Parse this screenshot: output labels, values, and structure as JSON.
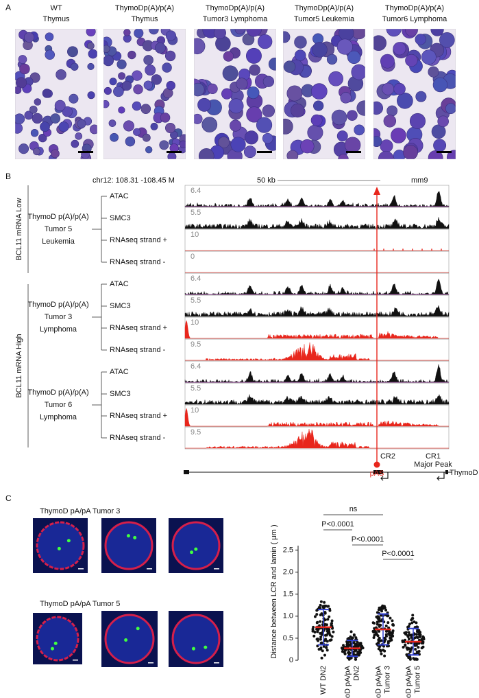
{
  "panel_a": {
    "label": "A",
    "images": [
      {
        "line1": "WT",
        "line2": "Thymus"
      },
      {
        "line1": "ThymoDp(A)/p(A)",
        "line2": "Thymus"
      },
      {
        "line1": "ThymoDp(A)/p(A)",
        "line2": "Tumor3 Lymphoma"
      },
      {
        "line1": "ThymoDp(A)/p(A)",
        "line2": "Tumor5 Leukemia"
      },
      {
        "line1": "ThymoDp(A)/p(A)",
        "line2": "Tumor6 Lymphoma"
      }
    ]
  },
  "panel_b": {
    "label": "B",
    "locus": "chr12: 108.31 -108.45 M",
    "scale": "50 kb",
    "genome": "mm9",
    "conditions": [
      "BCL11 mRNA Low",
      "BCL11 mRNA High"
    ],
    "groups": [
      {
        "sample": [
          "ThymoD p(A)/p(A)",
          "Tumor 5",
          "Leukemia"
        ],
        "tracks": [
          {
            "name": "ATAC",
            "max": 6.4
          },
          {
            "name": "SMC3",
            "max": 5.5
          },
          {
            "name": "RNAseq strand +",
            "max": 10
          },
          {
            "name": "RNAseq strand -",
            "max": 0
          }
        ]
      },
      {
        "sample": [
          "ThymoD p(A)/p(A)",
          "Tumor 3",
          "Lymphoma"
        ],
        "tracks": [
          {
            "name": "ATAC",
            "max": 6.4
          },
          {
            "name": "SMC3",
            "max": 5.5
          },
          {
            "name": "RNAseq strand +",
            "max": 10
          },
          {
            "name": "RNAseq strand -",
            "max": 9.5
          }
        ]
      },
      {
        "sample": [
          "ThymoD p(A)/p(A)",
          "Tumor 6",
          "Lymphoma"
        ],
        "tracks": [
          {
            "name": "ATAC",
            "max": 6.4
          },
          {
            "name": "SMC3",
            "max": 5.5
          },
          {
            "name": "RNAseq strand +",
            "max": 10
          },
          {
            "name": "RNAseq strand -",
            "max": 9.5
          }
        ]
      }
    ],
    "elements": [
      "CR2",
      "CR1",
      "Major Peak"
    ],
    "gene": "ThymoD",
    "site": "pAS"
  },
  "panel_c": {
    "label": "C",
    "image_rows": [
      "ThymoD pA/pA Tumor 3",
      "ThymoD pA/pA Tumor 5"
    ]
  },
  "chart_data": {
    "type": "dot",
    "ylabel": "Distance between LCR and lamin ( μm )",
    "categories": [
      [
        "WT DN2"
      ],
      [
        "ThymoD pA/pA",
        "DN2"
      ],
      [
        "ThymoD pA/pA",
        "Tumor 3"
      ],
      [
        "ThymoD pA/pA",
        "Tumor 5"
      ]
    ],
    "values": [
      0.75,
      0.27,
      0.7,
      0.42
    ],
    "errors": [
      0.4,
      0.18,
      0.35,
      0.3
    ],
    "mean_color": "#e8261c",
    "error_color": "#3040d0",
    "comparisons": [
      "ns",
      "P<0.0001",
      "P<0.0001",
      "P<0.0001"
    ],
    "ylim": [
      0,
      2.6
    ],
    "yticks": [
      0,
      0.5,
      {
        "value": 1,
        "label": "1.0"
      },
      1.5,
      {
        "value": 2,
        "label": "2.0"
      },
      2.5
    ]
  }
}
